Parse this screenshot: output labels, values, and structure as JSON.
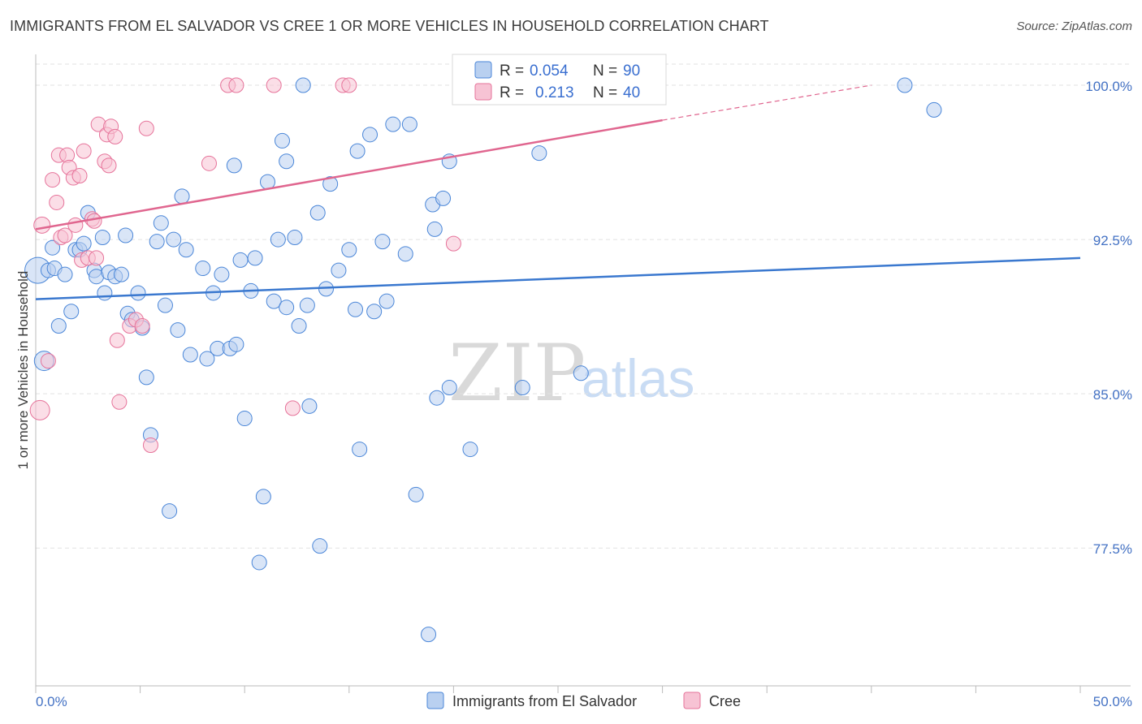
{
  "title": "IMMIGRANTS FROM EL SALVADOR VS CREE 1 OR MORE VEHICLES IN HOUSEHOLD CORRELATION CHART",
  "source": "Source: ZipAtlas.com",
  "watermark": {
    "zip": "ZIP",
    "atlas": "atlas"
  },
  "colors": {
    "blue": "#4a86d8",
    "blue_fill": "#b9d0f0",
    "pink": "#e6739a",
    "pink_fill": "#f7c3d4",
    "tick": "#4472c4"
  },
  "legend": {
    "rows": [
      {
        "r_label": "R =",
        "r_value": "0.054",
        "n_label": "N =",
        "n_value": "90"
      },
      {
        "r_label": "R =",
        "r_value": "0.213",
        "n_label": "N =",
        "n_value": "40"
      }
    ]
  },
  "bottom_legend": [
    "Immigrants from El Salvador",
    "Cree"
  ],
  "chart_data": {
    "type": "scatter",
    "title": "IMMIGRANTS FROM EL SALVADOR VS CREE 1 OR MORE VEHICLES IN HOUSEHOLD CORRELATION CHART",
    "xlabel": "",
    "ylabel": "1 or more Vehicles in Household",
    "xlim": [
      0,
      50
    ],
    "ylim": [
      70.8,
      101.5
    ],
    "x_tick_labels": [
      "0.0%",
      "50.0%"
    ],
    "y_ticks": [
      77.5,
      85.0,
      92.5,
      100.0
    ],
    "y_tick_labels": [
      "77.5%",
      "85.0%",
      "92.5%",
      "100.0%"
    ],
    "grid": true,
    "series": [
      {
        "name": "Immigrants from El Salvador",
        "color": "#4a86d8",
        "trend": {
          "x": [
            0,
            50
          ],
          "y": [
            89.6,
            91.6
          ]
        },
        "points": [
          [
            0.1,
            91.0
          ],
          [
            0.4,
            86.6
          ],
          [
            0.6,
            91.0
          ],
          [
            0.8,
            92.1
          ],
          [
            0.9,
            91.1
          ],
          [
            1.1,
            88.3
          ],
          [
            1.4,
            90.8
          ],
          [
            1.7,
            89.0
          ],
          [
            1.9,
            92.0
          ],
          [
            2.1,
            92.0
          ],
          [
            2.3,
            92.3
          ],
          [
            2.5,
            93.8
          ],
          [
            2.8,
            91.0
          ],
          [
            2.9,
            90.7
          ],
          [
            3.2,
            92.6
          ],
          [
            3.3,
            89.9
          ],
          [
            3.5,
            90.9
          ],
          [
            3.8,
            90.7
          ],
          [
            4.1,
            90.8
          ],
          [
            4.3,
            92.7
          ],
          [
            4.4,
            88.9
          ],
          [
            4.6,
            88.6
          ],
          [
            4.9,
            89.9
          ],
          [
            5.1,
            88.2
          ],
          [
            5.3,
            85.8
          ],
          [
            5.5,
            83.0
          ],
          [
            5.8,
            92.4
          ],
          [
            6.0,
            93.3
          ],
          [
            6.2,
            89.3
          ],
          [
            6.4,
            79.3
          ],
          [
            6.6,
            92.5
          ],
          [
            6.8,
            88.1
          ],
          [
            7.0,
            94.6
          ],
          [
            7.2,
            92.0
          ],
          [
            7.4,
            86.9
          ],
          [
            8.0,
            91.1
          ],
          [
            8.2,
            86.7
          ],
          [
            8.5,
            89.9
          ],
          [
            8.7,
            87.2
          ],
          [
            8.9,
            90.8
          ],
          [
            9.3,
            87.2
          ],
          [
            9.5,
            96.1
          ],
          [
            9.6,
            87.4
          ],
          [
            9.8,
            91.5
          ],
          [
            10.0,
            83.8
          ],
          [
            10.3,
            90.0
          ],
          [
            10.5,
            91.6
          ],
          [
            10.7,
            76.8
          ],
          [
            10.9,
            80.0
          ],
          [
            11.1,
            95.3
          ],
          [
            11.4,
            89.5
          ],
          [
            11.6,
            92.5
          ],
          [
            11.8,
            97.3
          ],
          [
            12.0,
            96.3
          ],
          [
            12.0,
            89.2
          ],
          [
            12.4,
            92.6
          ],
          [
            12.6,
            88.3
          ],
          [
            12.8,
            100.0
          ],
          [
            13.0,
            89.3
          ],
          [
            13.1,
            84.4
          ],
          [
            13.5,
            93.8
          ],
          [
            13.6,
            77.6
          ],
          [
            13.9,
            90.1
          ],
          [
            14.1,
            95.2
          ],
          [
            14.5,
            91.0
          ],
          [
            15.0,
            92.0
          ],
          [
            15.3,
            89.1
          ],
          [
            15.4,
            96.8
          ],
          [
            15.5,
            82.3
          ],
          [
            16.0,
            97.6
          ],
          [
            16.2,
            89.0
          ],
          [
            16.6,
            92.4
          ],
          [
            16.8,
            89.5
          ],
          [
            17.1,
            98.1
          ],
          [
            17.7,
            91.8
          ],
          [
            17.9,
            98.1
          ],
          [
            18.2,
            80.1
          ],
          [
            18.8,
            73.3
          ],
          [
            19.0,
            94.2
          ],
          [
            19.1,
            93.0
          ],
          [
            19.2,
            84.8
          ],
          [
            19.5,
            94.5
          ],
          [
            19.8,
            96.3
          ],
          [
            19.8,
            85.3
          ],
          [
            20.8,
            82.3
          ],
          [
            23.3,
            85.3
          ],
          [
            24.1,
            96.7
          ],
          [
            26.1,
            86.0
          ],
          [
            43.0,
            98.8
          ],
          [
            41.6,
            100.0
          ]
        ]
      },
      {
        "name": "Cree",
        "color": "#e6739a",
        "trend": {
          "x": [
            0,
            30
          ],
          "y": [
            93.0,
            98.3
          ]
        },
        "trend_dashed": {
          "x": [
            30,
            40
          ],
          "y": [
            98.3,
            100.0
          ]
        },
        "points": [
          [
            0.2,
            84.2
          ],
          [
            0.3,
            93.2
          ],
          [
            0.6,
            86.6
          ],
          [
            0.8,
            95.4
          ],
          [
            1.0,
            94.3
          ],
          [
            1.1,
            96.6
          ],
          [
            1.2,
            92.6
          ],
          [
            1.4,
            92.7
          ],
          [
            1.5,
            96.6
          ],
          [
            1.6,
            96.0
          ],
          [
            1.8,
            95.5
          ],
          [
            1.9,
            93.2
          ],
          [
            2.1,
            95.6
          ],
          [
            2.2,
            91.5
          ],
          [
            2.3,
            96.8
          ],
          [
            2.5,
            91.6
          ],
          [
            2.7,
            93.5
          ],
          [
            2.8,
            93.4
          ],
          [
            2.9,
            91.6
          ],
          [
            3.0,
            98.1
          ],
          [
            3.3,
            96.3
          ],
          [
            3.4,
            97.6
          ],
          [
            3.5,
            96.1
          ],
          [
            3.6,
            98.0
          ],
          [
            3.8,
            97.5
          ],
          [
            3.9,
            87.6
          ],
          [
            4.0,
            84.6
          ],
          [
            4.5,
            88.3
          ],
          [
            4.8,
            88.6
          ],
          [
            5.1,
            88.3
          ],
          [
            5.3,
            97.9
          ],
          [
            5.5,
            82.5
          ],
          [
            8.3,
            96.2
          ],
          [
            9.2,
            100.0
          ],
          [
            9.6,
            100.0
          ],
          [
            11.4,
            100.0
          ],
          [
            12.3,
            84.3
          ],
          [
            14.7,
            100.0
          ],
          [
            15.0,
            100.0
          ],
          [
            20.0,
            92.3
          ]
        ]
      }
    ]
  }
}
